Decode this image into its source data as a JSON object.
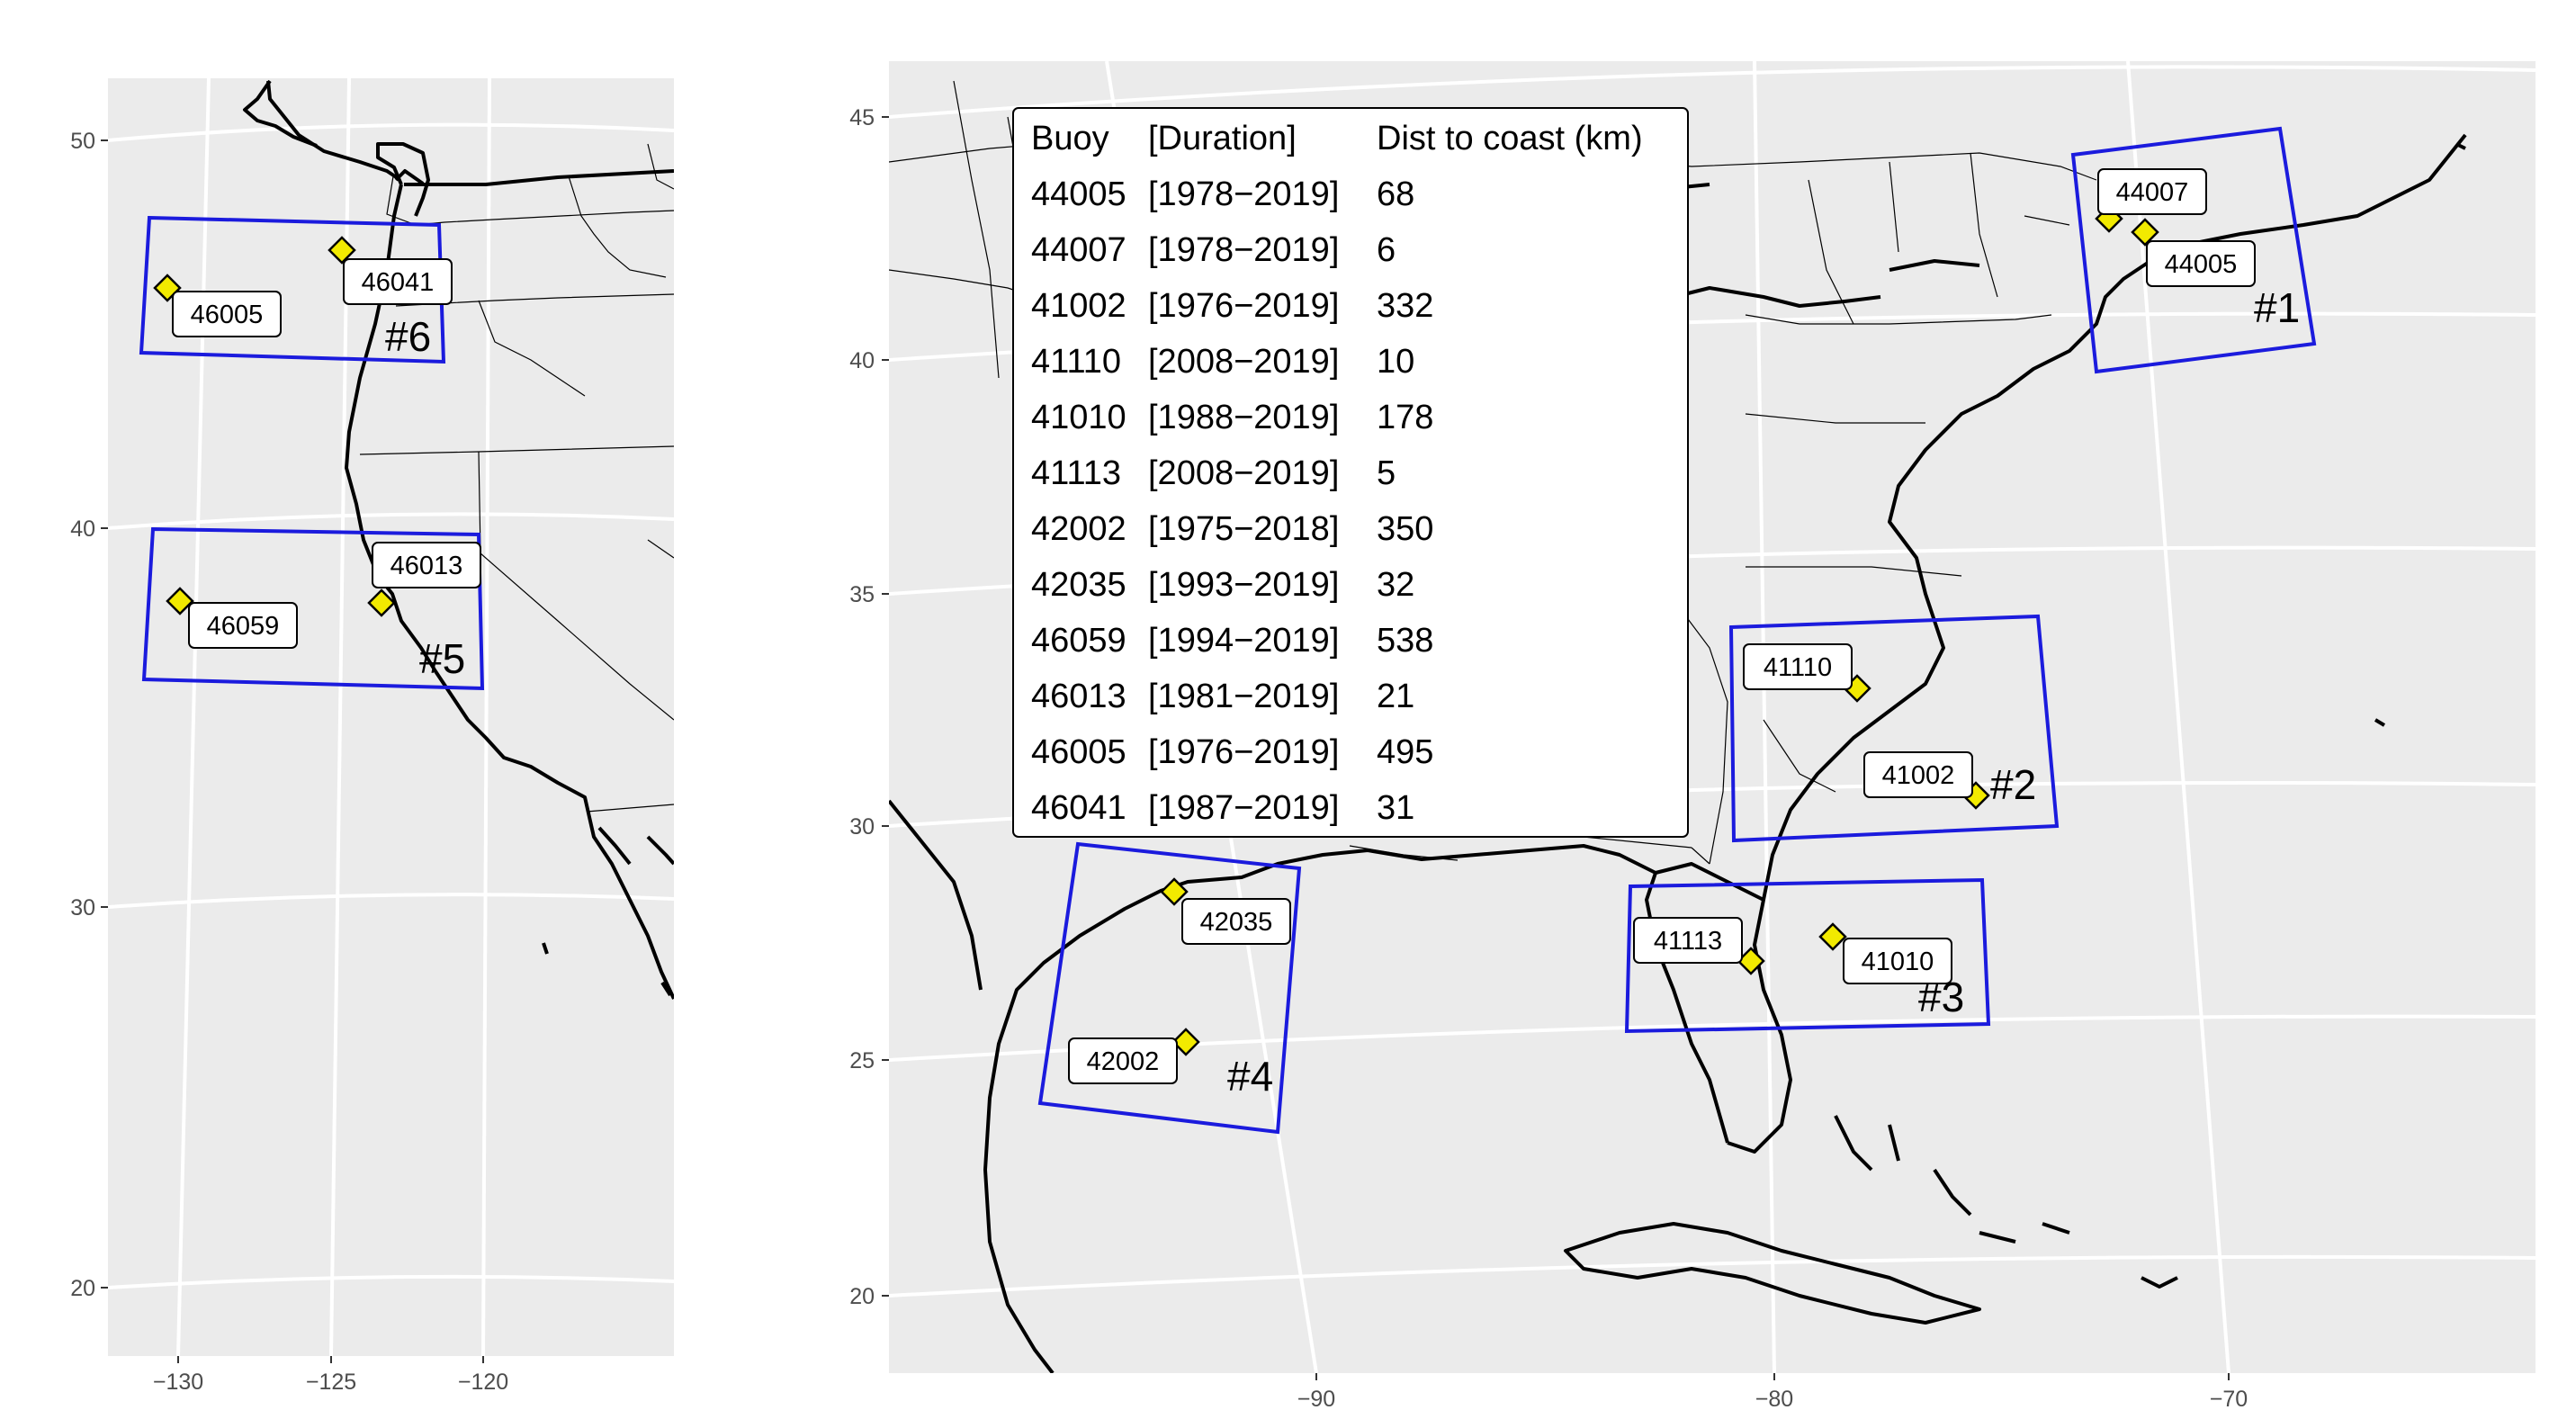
{
  "left_panel": {
    "y_ticks": [
      "50",
      "40",
      "30",
      "20"
    ],
    "x_ticks": [
      "−130",
      "−125",
      "−120"
    ],
    "regions": [
      "#6",
      "#5"
    ],
    "buoys": [
      {
        "id": "46005",
        "lon": -129.1,
        "lat": 46.1,
        "region": "#6"
      },
      {
        "id": "46041",
        "lon": -124.7,
        "lat": 47.4,
        "region": "#6"
      },
      {
        "id": "46059",
        "lon": -129.9,
        "lat": 38.0,
        "region": "#5"
      },
      {
        "id": "46013",
        "lon": -123.3,
        "lat": 38.2,
        "region": "#5"
      }
    ]
  },
  "right_panel": {
    "y_ticks": [
      "45",
      "40",
      "35",
      "30",
      "25",
      "20"
    ],
    "x_ticks": [
      "−90",
      "−80",
      "−70"
    ],
    "regions": [
      "#1",
      "#2",
      "#3",
      "#4"
    ],
    "buoys": [
      {
        "id": "44007",
        "lon": -70.1,
        "lat": 43.5,
        "region": "#1"
      },
      {
        "id": "44005",
        "lon": -69.2,
        "lat": 43.2,
        "region": "#1"
      },
      {
        "id": "41110",
        "lon": -77.7,
        "lat": 34.1,
        "region": "#2"
      },
      {
        "id": "41002",
        "lon": -75.4,
        "lat": 31.8,
        "region": "#2"
      },
      {
        "id": "41113",
        "lon": -80.5,
        "lat": 28.4,
        "region": "#3"
      },
      {
        "id": "41010",
        "lon": -78.5,
        "lat": 28.9,
        "region": "#3"
      },
      {
        "id": "42035",
        "lon": -94.4,
        "lat": 29.2,
        "region": "#4"
      },
      {
        "id": "42002",
        "lon": -93.6,
        "lat": 26.1,
        "region": "#4"
      }
    ]
  },
  "legend": {
    "header": [
      "Buoy",
      "[Duration]",
      "Dist to coast (km)"
    ],
    "rows": [
      [
        "44005",
        "[1978−2019]",
        "68"
      ],
      [
        "44007",
        "[1978−2019]",
        "6"
      ],
      [
        "41002",
        "[1976−2019]",
        "332"
      ],
      [
        "41110",
        "[2008−2019]",
        "10"
      ],
      [
        "41010",
        "[1988−2019]",
        "178"
      ],
      [
        "41113",
        "[2008−2019]",
        "5"
      ],
      [
        "42002",
        "[1975−2018]",
        "350"
      ],
      [
        "42035",
        "[1993−2019]",
        "32"
      ],
      [
        "46059",
        "[1994−2019]",
        "538"
      ],
      [
        "46013",
        "[1981−2019]",
        "21"
      ],
      [
        "46005",
        "[1976−2019]",
        "495"
      ],
      [
        "46041",
        "[1987−2019]",
        "31"
      ]
    ]
  }
}
